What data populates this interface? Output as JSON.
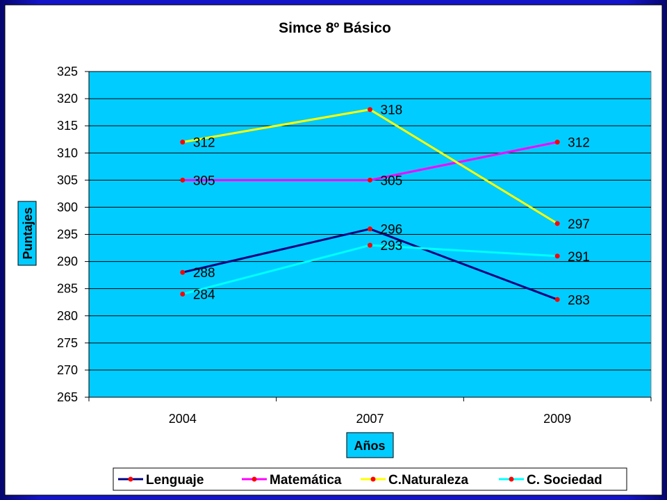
{
  "chart_data": {
    "type": "line",
    "title": "Simce 8º Básico",
    "xlabel": "Años",
    "ylabel": "Puntajes",
    "categories": [
      "2004",
      "2007",
      "2009"
    ],
    "ylim": [
      265,
      325
    ],
    "ytick_step": 5,
    "grid": true,
    "legend_position": "bottom",
    "series": [
      {
        "name": "Lenguaje",
        "values": [
          288,
          296,
          283
        ],
        "color": "#000080"
      },
      {
        "name": "Matemática",
        "values": [
          305,
          305,
          312
        ],
        "color": "#ff00ff"
      },
      {
        "name": "C.Naturaleza",
        "values": [
          312,
          318,
          297
        ],
        "color": "#ffff00"
      },
      {
        "name": "C. Sociedad",
        "values": [
          284,
          293,
          291
        ],
        "color": "#00ffff"
      }
    ],
    "marker_color": "#ff0000",
    "plot_bg": "#00ccff",
    "chart_bg": "#ffffff"
  }
}
